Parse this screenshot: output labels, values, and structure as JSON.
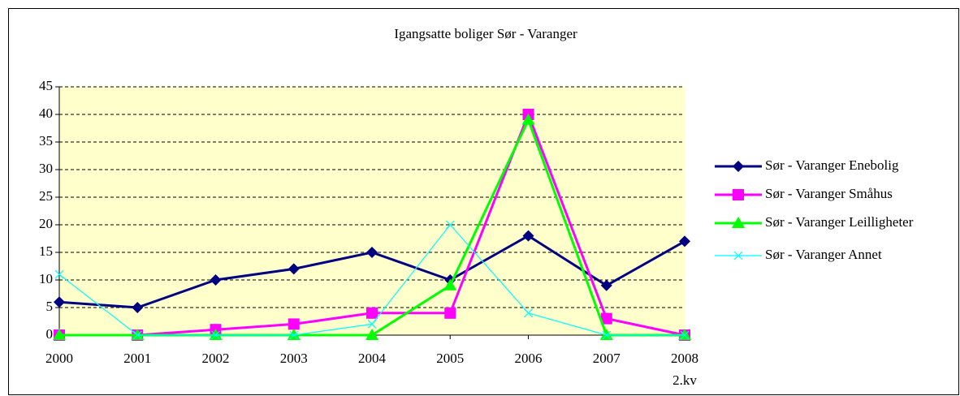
{
  "chart_data": {
    "type": "line",
    "title": "Igangsatte boliger Sør - Varanger",
    "categories": [
      "2000",
      "2001",
      "2002",
      "2003",
      "2004",
      "2005",
      "2006",
      "2007",
      "2008\n2.kv"
    ],
    "series": [
      {
        "name": "Sør - Varanger Enebolig",
        "color": "#000080",
        "marker": "diamond",
        "values": [
          6,
          5,
          10,
          12,
          15,
          10,
          18,
          9,
          17
        ]
      },
      {
        "name": "Sør - Varanger Småhus",
        "color": "#FF00FF",
        "marker": "square",
        "values": [
          0,
          0,
          1,
          2,
          4,
          4,
          40,
          3,
          0
        ]
      },
      {
        "name": "Sør - Varanger Leilligheter",
        "color": "#00FF00",
        "marker": "triangle",
        "values": [
          0,
          0,
          0,
          0,
          0,
          9,
          39,
          0,
          0
        ]
      },
      {
        "name": "Sør - Varanger Annet",
        "color": "#00FFFF",
        "marker": "x",
        "values": [
          11,
          0,
          0,
          0,
          2,
          20,
          4,
          0,
          0
        ]
      }
    ],
    "ylim": [
      0,
      45
    ],
    "yticks": [
      0,
      5,
      10,
      15,
      20,
      25,
      30,
      35,
      40,
      45
    ],
    "grid": true,
    "legend": "right"
  }
}
